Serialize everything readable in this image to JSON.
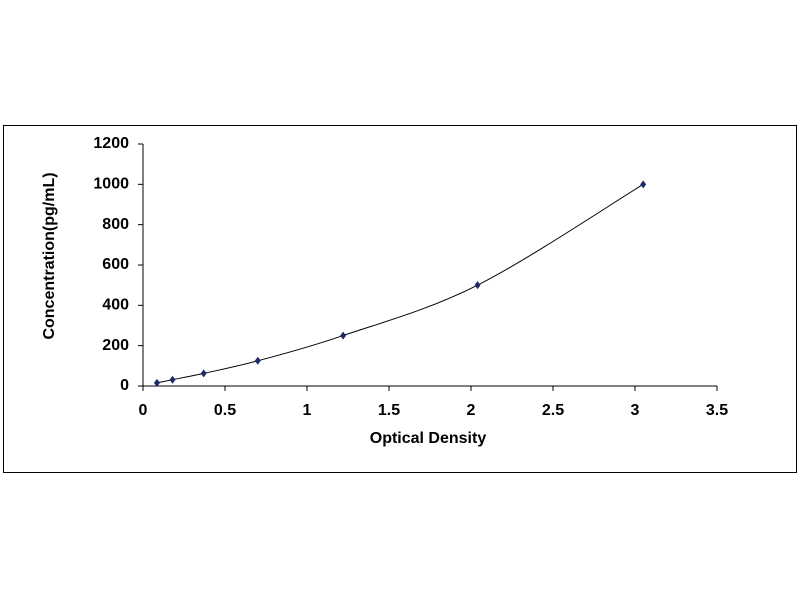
{
  "chart_data": {
    "type": "scatter",
    "x_label": "Optical Density",
    "y_label": "Concentration(pg/mL)",
    "x": [
      0.085,
      0.18,
      0.37,
      0.7,
      1.22,
      2.04,
      3.05
    ],
    "values": [
      15.6,
      31.3,
      62.5,
      125,
      250,
      500,
      1000
    ],
    "color": "#1f2a6b",
    "line_color": "#000000",
    "smooth_line": true,
    "xlim": [
      0,
      3.5
    ],
    "xticks": [
      0,
      0.5,
      1,
      1.5,
      2,
      2.5,
      3,
      3.5
    ],
    "ylim": [
      0,
      1200
    ],
    "yticks": [
      0,
      200,
      400,
      600,
      800,
      1000,
      1200
    ]
  }
}
